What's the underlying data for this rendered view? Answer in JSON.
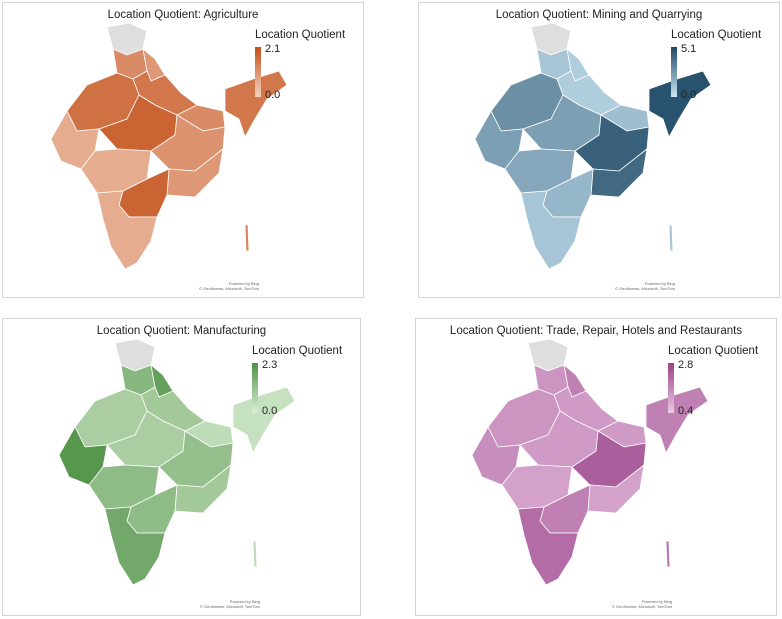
{
  "panels": [
    {
      "title": "Location Quotient: Agriculture",
      "legend": {
        "title": "Location Quotient",
        "max": "2.1",
        "min": "0.0",
        "color_low": "#f3d3c2",
        "color_high": "#c4501a"
      },
      "region_levels": {
        "jk": -1,
        "nw": 0.55,
        "up_w": 0.45,
        "north": 0.7,
        "west": 0.75,
        "central": 0.85,
        "bihar": 0.55,
        "ne": 0.7,
        "gujarat": 0.3,
        "maha": 0.3,
        "east": 0.5,
        "odisha": 0.45,
        "south_c": 0.85,
        "south": 0.3,
        "islands": 0.6
      }
    },
    {
      "title": "Location Quotient: Mining and Quarrying",
      "legend": {
        "title": "Location Quotient",
        "max": "5.1",
        "min": "0.0",
        "color_low": "#c9e4f3",
        "color_high": "#1f4a66"
      },
      "region_levels": {
        "jk": -1,
        "nw": 0.2,
        "up_w": 0.15,
        "north": 0.15,
        "west": 0.55,
        "central": 0.45,
        "bihar": 0.25,
        "ne": 0.95,
        "gujarat": 0.45,
        "maha": 0.4,
        "east": 0.85,
        "odisha": 0.8,
        "south_c": 0.3,
        "south": 0.2,
        "islands": 0.2
      }
    },
    {
      "title": "Location Quotient: Manufacturing",
      "legend": {
        "title": "Location Quotient",
        "max": "2.3",
        "min": "0.0",
        "color_low": "#dbefd4",
        "color_high": "#4f9146"
      },
      "region_levels": {
        "jk": -1,
        "nw": 0.6,
        "up_w": 0.85,
        "north": 0.4,
        "west": 0.35,
        "central": 0.35,
        "bihar": 0.2,
        "ne": 0.15,
        "gujarat": 0.95,
        "maha": 0.55,
        "east": 0.5,
        "odisha": 0.4,
        "south_c": 0.55,
        "south": 0.75,
        "islands": 0.2
      }
    },
    {
      "title": "Location Quotient: Trade, Repair, Hotels and Restaurants",
      "legend": {
        "title": "Location Quotient",
        "max": "2.8",
        "min": "0.4",
        "color_low": "#ecc9e6",
        "color_high": "#9a4489"
      },
      "region_levels": {
        "jk": -1,
        "nw": 0.4,
        "up_w": 0.55,
        "north": 0.35,
        "west": 0.4,
        "central": 0.35,
        "bihar": 0.35,
        "ne": 0.55,
        "gujarat": 0.45,
        "maha": 0.3,
        "east": 0.8,
        "odisha": 0.3,
        "south_c": 0.55,
        "south": 0.7,
        "islands": 0.6
      }
    }
  ],
  "map_credit": {
    "line1": "Powered by Bing",
    "line2": "© GeoNames, Microsoft, TomTom"
  },
  "colors": {
    "no_data": "#dedede",
    "border": "#ffffff"
  }
}
